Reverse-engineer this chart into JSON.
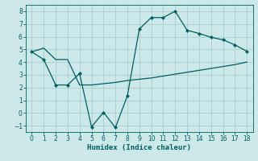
{
  "xlabel": "Humidex (Indice chaleur)",
  "bg_color": "#cce8e8",
  "grid_color": "#aacccc",
  "line_color": "#005f5f",
  "xlim": [
    -0.5,
    18.5
  ],
  "ylim": [
    -1.5,
    8.5
  ],
  "xticks": [
    0,
    1,
    2,
    3,
    4,
    5,
    6,
    7,
    8,
    9,
    10,
    11,
    12,
    13,
    14,
    15,
    16,
    17,
    18
  ],
  "yticks": [
    -1,
    0,
    1,
    2,
    3,
    4,
    5,
    6,
    7,
    8
  ],
  "line1_x": [
    0,
    1,
    2,
    3,
    4,
    5,
    6,
    7,
    8,
    9,
    10,
    11,
    12,
    13,
    14,
    15,
    16,
    17,
    18
  ],
  "line1_y": [
    4.8,
    5.1,
    4.2,
    4.2,
    2.2,
    2.2,
    2.3,
    2.4,
    2.55,
    2.65,
    2.75,
    2.9,
    3.05,
    3.2,
    3.35,
    3.5,
    3.65,
    3.8,
    4.0
  ],
  "line2_x": [
    0,
    1,
    2,
    3,
    4,
    5,
    6,
    7,
    8,
    9,
    10,
    11,
    12,
    13,
    14,
    15,
    16,
    17,
    18
  ],
  "line2_y": [
    4.8,
    4.2,
    2.2,
    2.2,
    3.1,
    -1.1,
    0.05,
    -1.15,
    1.35,
    6.6,
    7.5,
    7.5,
    8.0,
    6.5,
    6.25,
    5.95,
    5.75,
    5.35,
    4.85
  ],
  "xlabel_fontsize": 6.5,
  "tick_fontsize": 5.5
}
